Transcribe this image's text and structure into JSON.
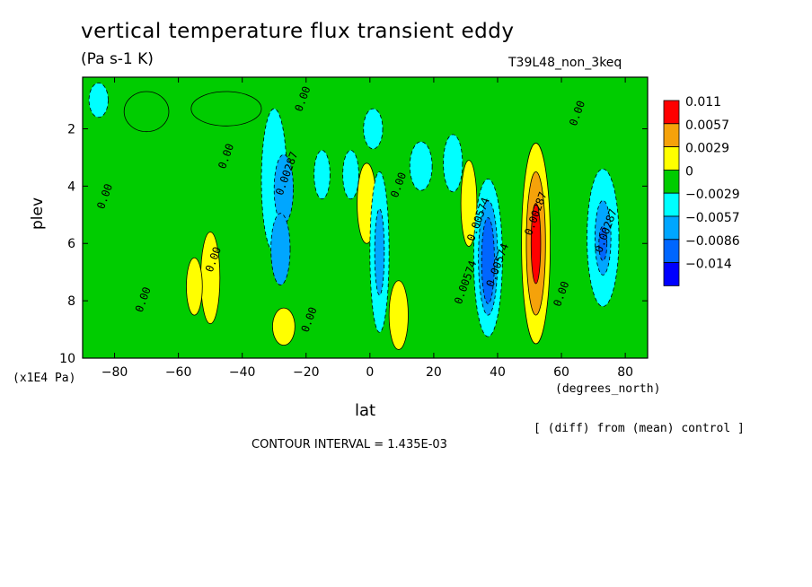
{
  "header": {
    "title": "vertical temperature flux transient eddy",
    "units": "(Pa s-1 K)",
    "run": "T39L48_non_3keq"
  },
  "axes": {
    "ylabel": "plev",
    "yunit": "(x1E4 Pa)",
    "xlabel": "lat",
    "xunit": "(degrees_north)"
  },
  "footer": {
    "diff_note": "[ (diff) from (mean) control ]",
    "contour_interval": "CONTOUR INTERVAL = 1.435E-03"
  },
  "chart_data": {
    "type": "heatmap",
    "title": "vertical temperature flux transient eddy",
    "xlabel": "lat",
    "ylabel": "plev",
    "xlim": [
      -90,
      87
    ],
    "ylim": [
      10,
      0.2
    ],
    "y_inverted": true,
    "x_ticks": [
      -80,
      -60,
      -40,
      -20,
      0,
      20,
      40,
      60,
      80
    ],
    "y_ticks": [
      2,
      4,
      6,
      8,
      10
    ],
    "contour_interval": 0.001435,
    "legend": {
      "placement": "right",
      "levels": [
        "0.011",
        "0.0057",
        "0.0029",
        "0",
        "-0.0029",
        "-0.0057",
        "-0.0086",
        "-0.014"
      ],
      "colors": [
        "#ff0000",
        "#f5a20a",
        "#ffff00",
        "#00cc00",
        "#00ffff",
        "#00a6ff",
        "#0066ff",
        "#0000ff"
      ]
    },
    "cells": [
      {
        "lat": -85,
        "plev": 1.0,
        "level": "-0.0029",
        "dlat": 6,
        "dp": 1.2
      },
      {
        "lat": -70,
        "plev": 1.4,
        "level": "0",
        "dlat": 14,
        "dp": 1.4
      },
      {
        "lat": -45,
        "plev": 1.3,
        "level": "0",
        "dlat": 22,
        "dp": 1.2
      },
      {
        "lat": -30,
        "plev": 3.8,
        "level": "-0.0029",
        "dlat": 8,
        "dp": 5.0
      },
      {
        "lat": -27,
        "plev": 4.1,
        "level": "-0.0057",
        "dlat": 6,
        "dp": 2.4
      },
      {
        "lat": -28,
        "plev": 6.2,
        "level": "-0.0057",
        "dlat": 6,
        "dp": 2.5
      },
      {
        "lat": -50,
        "plev": 7.2,
        "level": "0.0029",
        "dlat": 6,
        "dp": 3.2
      },
      {
        "lat": -55,
        "plev": 7.5,
        "level": "0.0029",
        "dlat": 5,
        "dp": 2.0
      },
      {
        "lat": -27,
        "plev": 8.9,
        "level": "0.0029",
        "dlat": 7,
        "dp": 1.3
      },
      {
        "lat": -15,
        "plev": 3.6,
        "level": "-0.0029",
        "dlat": 5,
        "dp": 1.7
      },
      {
        "lat": -6,
        "plev": 3.6,
        "level": "-0.0029",
        "dlat": 5,
        "dp": 1.7
      },
      {
        "lat": 1,
        "plev": 2.0,
        "level": "-0.0029",
        "dlat": 6,
        "dp": 1.4
      },
      {
        "lat": -1,
        "plev": 4.6,
        "level": "0.0029",
        "dlat": 6,
        "dp": 2.8
      },
      {
        "lat": 3,
        "plev": 6.3,
        "level": "-0.0029",
        "dlat": 6,
        "dp": 5.6
      },
      {
        "lat": 3,
        "plev": 6.3,
        "level": "-0.0057",
        "dlat": 3,
        "dp": 3.0
      },
      {
        "lat": 9,
        "plev": 8.5,
        "level": "0.0029",
        "dlat": 6,
        "dp": 2.4
      },
      {
        "lat": 16,
        "plev": 3.3,
        "level": "-0.0029",
        "dlat": 7,
        "dp": 1.7
      },
      {
        "lat": 26,
        "plev": 3.2,
        "level": "-0.0029",
        "dlat": 6,
        "dp": 2.0
      },
      {
        "lat": 31,
        "plev": 4.6,
        "level": "0.0029",
        "dlat": 5,
        "dp": 3.0
      },
      {
        "lat": 37,
        "plev": 6.5,
        "level": "-0.0029",
        "dlat": 9,
        "dp": 5.5
      },
      {
        "lat": 37,
        "plev": 6.5,
        "level": "-0.0057",
        "dlat": 6,
        "dp": 4.0
      },
      {
        "lat": 37,
        "plev": 6.6,
        "level": "-0.0086",
        "dlat": 4,
        "dp": 3.0
      },
      {
        "lat": 52,
        "plev": 6.0,
        "level": "0.0029",
        "dlat": 9,
        "dp": 7.0
      },
      {
        "lat": 52,
        "plev": 6.0,
        "level": "0.0057",
        "dlat": 6,
        "dp": 5.0
      },
      {
        "lat": 52,
        "plev": 6.0,
        "level": "0.011",
        "dlat": 3,
        "dp": 2.8
      },
      {
        "lat": 73,
        "plev": 5.8,
        "level": "-0.0029",
        "dlat": 10,
        "dp": 4.8
      },
      {
        "lat": 73,
        "plev": 5.8,
        "level": "-0.0057",
        "dlat": 5,
        "dp": 2.6
      },
      {
        "lat": 73,
        "plev": 6.0,
        "level": "-0.0086",
        "dlat": 2.5,
        "dp": 1.2
      }
    ],
    "contour_labels": [
      {
        "text": "0.00",
        "lat": -20,
        "plev": 1.0
      },
      {
        "text": "0.00",
        "lat": 66,
        "plev": 1.5
      },
      {
        "text": "0.00",
        "lat": -44,
        "plev": 3.0
      },
      {
        "text": "0.00",
        "lat": -82,
        "plev": 4.4
      },
      {
        "text": "0.00",
        "lat": -48,
        "plev": 6.6
      },
      {
        "text": "0.00",
        "lat": -70,
        "plev": 8.0
      },
      {
        "text": "0.00",
        "lat": 10,
        "plev": 4.0
      },
      {
        "text": "0.00",
        "lat": -18,
        "plev": 8.7
      },
      {
        "text": "0.00",
        "lat": 61,
        "plev": 7.8
      },
      {
        "text": "0.00287",
        "lat": -25,
        "plev": 3.6
      },
      {
        "text": "0.00287",
        "lat": 53,
        "plev": 5.0
      },
      {
        "text": "0.00287",
        "lat": 75,
        "plev": 5.6
      },
      {
        "text": "0.00574",
        "lat": 41,
        "plev": 6.8
      },
      {
        "text": "0.00574",
        "lat": 35,
        "plev": 5.2
      },
      {
        "text": "0.00574",
        "lat": 31,
        "plev": 7.4
      }
    ]
  }
}
